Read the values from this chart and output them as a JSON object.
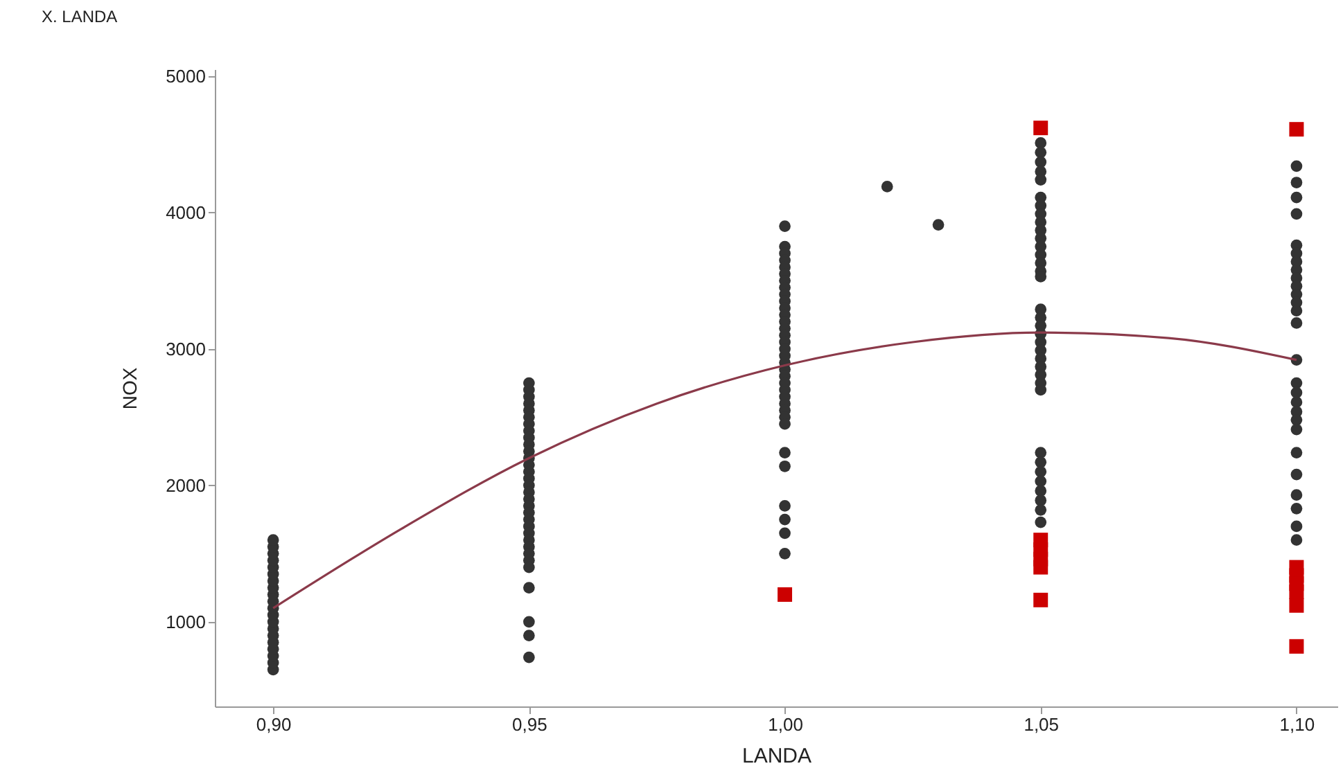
{
  "chart_data": {
    "type": "scatter",
    "title": "X. LANDA",
    "xlabel": "LANDA",
    "ylabel": "NOX",
    "xlim": [
      0.8886,
      1.108
    ],
    "xticks": [
      {
        "value": 0.9,
        "label": "0,90"
      },
      {
        "value": 0.95,
        "label": "0,95"
      },
      {
        "value": 1.0,
        "label": "1,00"
      },
      {
        "value": 1.05,
        "label": "1,05"
      },
      {
        "value": 1.1,
        "label": "1,10"
      }
    ],
    "ylim": [
      380,
      5050
    ],
    "yticks": [
      1000,
      2000,
      3000,
      4000,
      5000
    ],
    "grid": false,
    "series": [
      {
        "marker": "circle",
        "color": "#333333",
        "x": [
          0.9,
          0.9,
          0.9,
          0.9,
          0.9,
          0.9,
          0.9,
          0.9,
          0.9,
          0.9,
          0.9,
          0.9,
          0.9,
          0.9,
          0.9,
          0.9,
          0.9,
          0.9,
          0.9,
          0.9,
          0.95,
          0.95,
          0.95,
          0.95,
          0.95,
          0.95,
          0.95,
          0.95,
          0.95,
          0.95,
          0.95,
          0.95,
          0.95,
          0.95,
          0.95,
          0.95,
          0.95,
          0.95,
          0.95,
          0.95,
          0.95,
          0.95,
          0.95,
          0.95,
          0.95,
          0.95,
          0.95,
          0.95,
          0.95,
          0.95,
          0.95,
          0.95,
          1.0,
          1.0,
          1.0,
          1.0,
          1.0,
          1.0,
          1.0,
          1.0,
          1.0,
          1.0,
          1.0,
          1.0,
          1.0,
          1.0,
          1.0,
          1.0,
          1.0,
          1.0,
          1.0,
          1.0,
          1.0,
          1.0,
          1.0,
          1.0,
          1.0,
          1.0,
          1.0,
          1.0,
          1.0,
          1.0,
          1.0,
          1.0,
          1.0,
          1.0,
          1.02,
          1.03,
          1.05,
          1.05,
          1.05,
          1.05,
          1.05,
          1.05,
          1.05,
          1.05,
          1.05,
          1.05,
          1.05,
          1.05,
          1.05,
          1.05,
          1.05,
          1.05,
          1.05,
          1.05,
          1.05,
          1.05,
          1.05,
          1.05,
          1.05,
          1.05,
          1.05,
          1.05,
          1.05,
          1.05,
          1.05,
          1.05,
          1.05,
          1.05,
          1.05,
          1.05,
          1.05,
          1.1,
          1.1,
          1.1,
          1.1,
          1.1,
          1.1,
          1.1,
          1.1,
          1.1,
          1.1,
          1.1,
          1.1,
          1.1,
          1.1,
          1.1,
          1.1,
          1.1,
          1.1,
          1.1,
          1.1,
          1.1,
          1.1,
          1.1,
          1.1,
          1.1,
          1.1,
          1.1
        ],
        "values": [
          650,
          700,
          750,
          800,
          850,
          900,
          950,
          1000,
          1050,
          1100,
          1150,
          1200,
          1250,
          1300,
          1350,
          1400,
          1450,
          1500,
          1550,
          1600,
          2750,
          2700,
          2650,
          2600,
          2550,
          2500,
          2450,
          2400,
          2350,
          2300,
          2250,
          2200,
          2150,
          2100,
          2050,
          2000,
          1950,
          1900,
          1850,
          1800,
          1750,
          1700,
          1650,
          1600,
          1550,
          1500,
          1450,
          1400,
          1250,
          1000,
          900,
          740,
          3900,
          3750,
          3700,
          3650,
          3600,
          3550,
          3500,
          3450,
          3400,
          3350,
          3300,
          3250,
          3200,
          3150,
          3100,
          3050,
          3000,
          2950,
          2900,
          2850,
          2800,
          2750,
          2700,
          2650,
          2600,
          2550,
          2500,
          2450,
          2240,
          2140,
          1850,
          1750,
          1650,
          1500,
          4190,
          3910,
          4510,
          4440,
          4370,
          4300,
          4240,
          4110,
          4050,
          3990,
          3930,
          3870,
          3810,
          3750,
          3690,
          3630,
          3570,
          3530,
          3290,
          3230,
          3170,
          3110,
          3050,
          2990,
          2930,
          2870,
          2810,
          2750,
          2700,
          2240,
          2170,
          2100,
          2030,
          1960,
          1890,
          1820,
          1730,
          4340,
          4220,
          4110,
          3990,
          3760,
          3700,
          3640,
          3580,
          3520,
          3460,
          3400,
          3340,
          3280,
          3190,
          2920,
          2750,
          2680,
          2610,
          2540,
          2480,
          2410,
          2240,
          2080,
          1930,
          1830,
          1700,
          1600
        ]
      },
      {
        "marker": "square",
        "color": "#cc0000",
        "x": [
          1.0,
          1.05,
          1.05,
          1.05,
          1.05,
          1.05,
          1.05,
          1.1,
          1.1,
          1.1,
          1.1,
          1.1,
          1.1,
          1.1
        ],
        "values": [
          1200,
          4620,
          1600,
          1530,
          1460,
          1400,
          1160,
          4610,
          1400,
          1340,
          1280,
          1220,
          1120,
          820
        ]
      },
      {
        "type": "line",
        "color": "#8b3a4a",
        "x": [
          0.9,
          0.925,
          0.95,
          0.975,
          1.0,
          1.025,
          1.05,
          1.075,
          1.1
        ],
        "values": [
          1100,
          1680,
          2200,
          2600,
          2880,
          3050,
          3120,
          3080,
          2920
        ]
      }
    ]
  }
}
